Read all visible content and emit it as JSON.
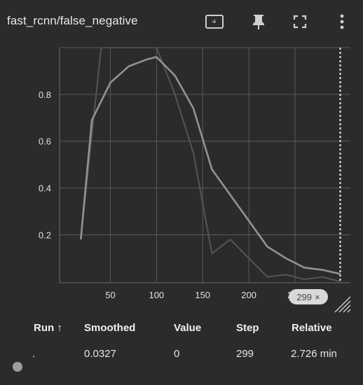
{
  "card": {
    "title": "fast_rcnn/false_negative",
    "icons": {
      "fit": "fit-domain-icon",
      "pin": "pin-icon",
      "fullscreen": "fullscreen-icon",
      "menu": "more-vertical-icon"
    }
  },
  "step_badge": {
    "label": "299",
    "close": "×"
  },
  "table": {
    "headers": [
      "Run ↑",
      "Smoothed",
      "Value",
      "Step",
      "Relative"
    ],
    "row": {
      "run": ".",
      "smoothed": "0.0327",
      "value": "0",
      "step": "299",
      "relative": "2.726 min"
    },
    "run_color": "#9aa0a6"
  },
  "chart_data": {
    "type": "line",
    "x_ticks": [
      "50",
      "100",
      "150",
      "200",
      "250"
    ],
    "y_ticks": [
      "0.2",
      "0.4",
      "0.6",
      "0.8"
    ],
    "xlim": [
      -5,
      310
    ],
    "ylim": [
      -0.005,
      1.0
    ],
    "grid": true,
    "series": [
      {
        "role": "raw",
        "color": "#555555",
        "points": [
          [
            18,
            0.18
          ],
          [
            40,
            1.0
          ],
          [
            100,
            1.0
          ],
          [
            120,
            0.8
          ],
          [
            140,
            0.55
          ],
          [
            160,
            0.12
          ],
          [
            180,
            0.18
          ],
          [
            200,
            0.1
          ],
          [
            220,
            0.02
          ],
          [
            240,
            0.03
          ],
          [
            260,
            0.01
          ],
          [
            280,
            0.02
          ],
          [
            299,
            0.0
          ]
        ]
      },
      {
        "role": "smoothed",
        "color": "#8d939b",
        "points": [
          [
            18,
            0.18
          ],
          [
            30,
            0.69
          ],
          [
            50,
            0.85
          ],
          [
            70,
            0.92
          ],
          [
            90,
            0.95
          ],
          [
            100,
            0.96
          ],
          [
            120,
            0.88
          ],
          [
            140,
            0.74
          ],
          [
            160,
            0.48
          ],
          [
            180,
            0.37
          ],
          [
            200,
            0.26
          ],
          [
            220,
            0.15
          ],
          [
            240,
            0.1
          ],
          [
            260,
            0.06
          ],
          [
            280,
            0.05
          ],
          [
            299,
            0.033
          ]
        ]
      }
    ],
    "current_step": 299
  }
}
